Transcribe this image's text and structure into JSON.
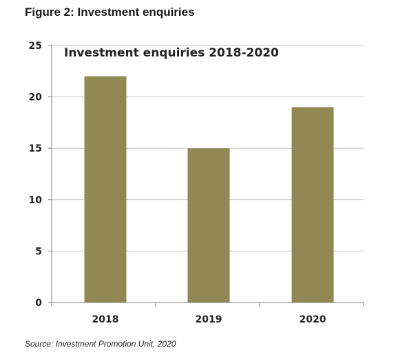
{
  "figure": {
    "caption": "Figure 2: Investment enquiries",
    "source": "Source: Investment Promotion Unit, 2020"
  },
  "colors": {
    "bar": "#928853",
    "grid": "#c8c8c8",
    "axis": "#808080"
  },
  "chart_data": {
    "type": "bar",
    "title": "Investment enquiries 2018-2020",
    "categories": [
      "2018",
      "2019",
      "2020"
    ],
    "values": [
      22,
      15,
      19
    ],
    "xlabel": "",
    "ylabel": "",
    "ylim": [
      0,
      25
    ],
    "yticks": [
      0,
      5,
      10,
      15,
      20,
      25
    ],
    "grid": true,
    "legend": "none"
  }
}
